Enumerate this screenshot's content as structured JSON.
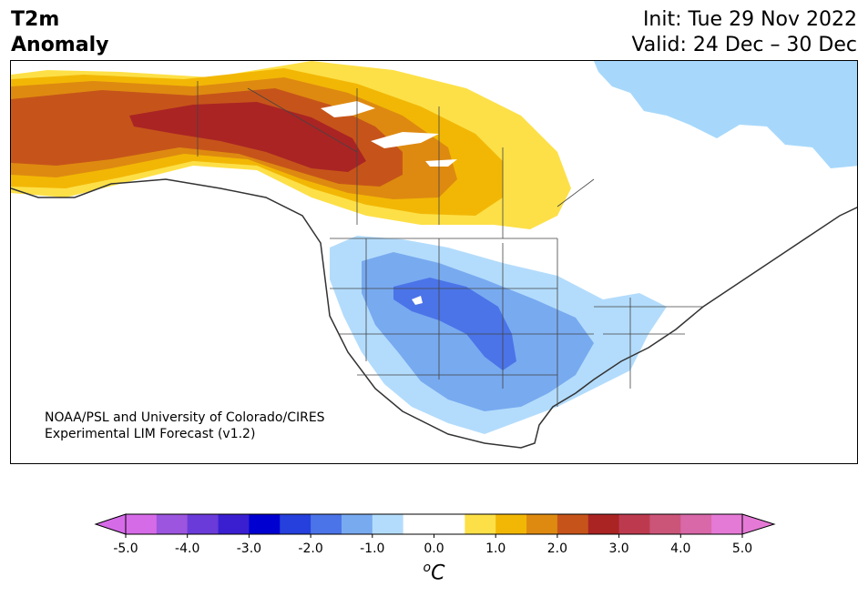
{
  "header": {
    "variable": "T2m",
    "kind": "Anomaly",
    "init": "Init: Tue 29 Nov 2022",
    "valid": "Valid: 24 Dec – 30 Dec"
  },
  "credit": {
    "line1": "NOAA/PSL and University of Colorado/CIRES",
    "line2": "Experimental LIM Forecast (v1.2)"
  },
  "colorbar": {
    "ticks": [
      "-5.0",
      "-4.0",
      "-3.0",
      "-2.0",
      "-1.0",
      "0.0",
      "1.0",
      "2.0",
      "3.0",
      "4.0",
      "5.0"
    ],
    "colors": [
      "#d66be8",
      "#9b55de",
      "#6a3bd9",
      "#3a1fd1",
      "#0000d0",
      "#2540dc",
      "#4b74e8",
      "#78aaf0",
      "#b3dcfc",
      "#ffffff",
      "#ffffff",
      "#fde047",
      "#f2b705",
      "#de8a10",
      "#c6541a",
      "#aa2424",
      "#bd3a4e",
      "#cb5579",
      "#d868a8",
      "#e57ad6"
    ],
    "unit": "oC"
  },
  "map": {
    "region": "North America",
    "land_color": "#ffffff",
    "ocean_color": "#ffffff",
    "arctic_cold_color": "#a7d8fb"
  }
}
